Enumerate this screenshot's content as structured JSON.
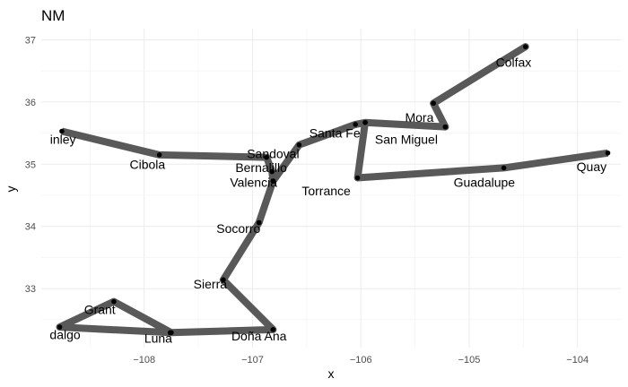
{
  "chart_data": {
    "type": "line",
    "title": "NM",
    "xlabel": "x",
    "ylabel": "y",
    "xlim": [
      -108.95,
      -103.6
    ],
    "ylim": [
      32.05,
      37.18
    ],
    "x_ticks": [
      -108,
      -107,
      -106,
      -105,
      -104
    ],
    "y_ticks": [
      33,
      34,
      35,
      36,
      37
    ],
    "grid": true,
    "line_color": "#595959",
    "point_color": "#000000",
    "series": [
      {
        "points": [
          {
            "x": -108.76,
            "y": 35.53,
            "label": "McKinley"
          },
          {
            "x": -107.86,
            "y": 35.15,
            "label": "Cibola"
          },
          {
            "x": -106.87,
            "y": 35.11,
            "label": "Sandoval"
          },
          {
            "x": -106.82,
            "y": 34.88,
            "label": "Bernalillo"
          },
          {
            "x": -106.81,
            "y": 34.73,
            "label": "Valencia"
          },
          {
            "x": -106.94,
            "y": 34.06,
            "label": "Socorro"
          },
          {
            "x": -107.27,
            "y": 33.14,
            "label": "Sierra"
          },
          {
            "x": -106.81,
            "y": 32.34,
            "label": "Doña Ana"
          },
          {
            "x": -107.76,
            "y": 32.29,
            "label": "Luna"
          },
          {
            "x": -108.78,
            "y": 32.38,
            "label": "Hidalgo"
          },
          {
            "x": -108.28,
            "y": 32.79,
            "label": "Grant"
          },
          {
            "x": -107.75,
            "y": 32.29,
            "label": "Luna"
          },
          {
            "x": -106.81,
            "y": 32.34,
            "label": "Doña Ana"
          },
          {
            "x": -107.27,
            "y": 33.14,
            "label": "Sierra"
          },
          {
            "x": -106.94,
            "y": 34.06,
            "label": "Socorro"
          },
          {
            "x": -106.81,
            "y": 34.73,
            "label": "Valencia"
          },
          {
            "x": -106.57,
            "y": 35.31,
            "label": "Sandoval"
          },
          {
            "x": -106.05,
            "y": 35.64,
            "label": "Santa Fe"
          },
          {
            "x": -105.96,
            "y": 35.67,
            "label": "Santa Fe"
          },
          {
            "x": -105.22,
            "y": 35.6,
            "label": "San Miguel"
          },
          {
            "x": -105.33,
            "y": 35.98,
            "label": "Mora"
          },
          {
            "x": -104.48,
            "y": 36.89,
            "label": "Colfax"
          },
          {
            "x": -105.33,
            "y": 35.98,
            "label": "Mora"
          },
          {
            "x": -105.22,
            "y": 35.6,
            "label": "San Miguel"
          },
          {
            "x": -105.96,
            "y": 35.67,
            "label": "Santa Fe"
          },
          {
            "x": -106.03,
            "y": 34.78,
            "label": "Torrance"
          },
          {
            "x": -104.68,
            "y": 34.94,
            "label": "Guadalupe"
          },
          {
            "x": -103.72,
            "y": 35.18,
            "label": "Quay"
          }
        ]
      }
    ],
    "labels": [
      {
        "text": "inley",
        "x": -108.75,
        "y": 35.4
      },
      {
        "text": "Cibola",
        "x": -107.97,
        "y": 35.0
      },
      {
        "text": "Sandoval",
        "x": -106.81,
        "y": 35.17
      },
      {
        "text": "Bernalillo",
        "x": -106.92,
        "y": 34.95
      },
      {
        "text": "Valencia",
        "x": -106.99,
        "y": 34.71
      },
      {
        "text": "Socorro",
        "x": -107.13,
        "y": 33.97
      },
      {
        "text": "Sierra",
        "x": -107.39,
        "y": 33.07
      },
      {
        "text": "Grant",
        "x": -108.41,
        "y": 32.66
      },
      {
        "text": "dalgo",
        "x": -108.73,
        "y": 32.26
      },
      {
        "text": "Luna",
        "x": -107.87,
        "y": 32.2
      },
      {
        "text": "Doña Ana",
        "x": -106.94,
        "y": 32.24
      },
      {
        "text": "Santa Fe",
        "x": -106.24,
        "y": 35.5
      },
      {
        "text": "San Miguel",
        "x": -105.58,
        "y": 35.4
      },
      {
        "text": "Mora",
        "x": -105.46,
        "y": 35.75
      },
      {
        "text": "Colfax",
        "x": -104.59,
        "y": 36.64
      },
      {
        "text": "Torrance",
        "x": -106.32,
        "y": 34.57
      },
      {
        "text": "Guadalupe",
        "x": -104.86,
        "y": 34.71
      },
      {
        "text": "Quay",
        "x": -103.87,
        "y": 34.96
      }
    ]
  }
}
